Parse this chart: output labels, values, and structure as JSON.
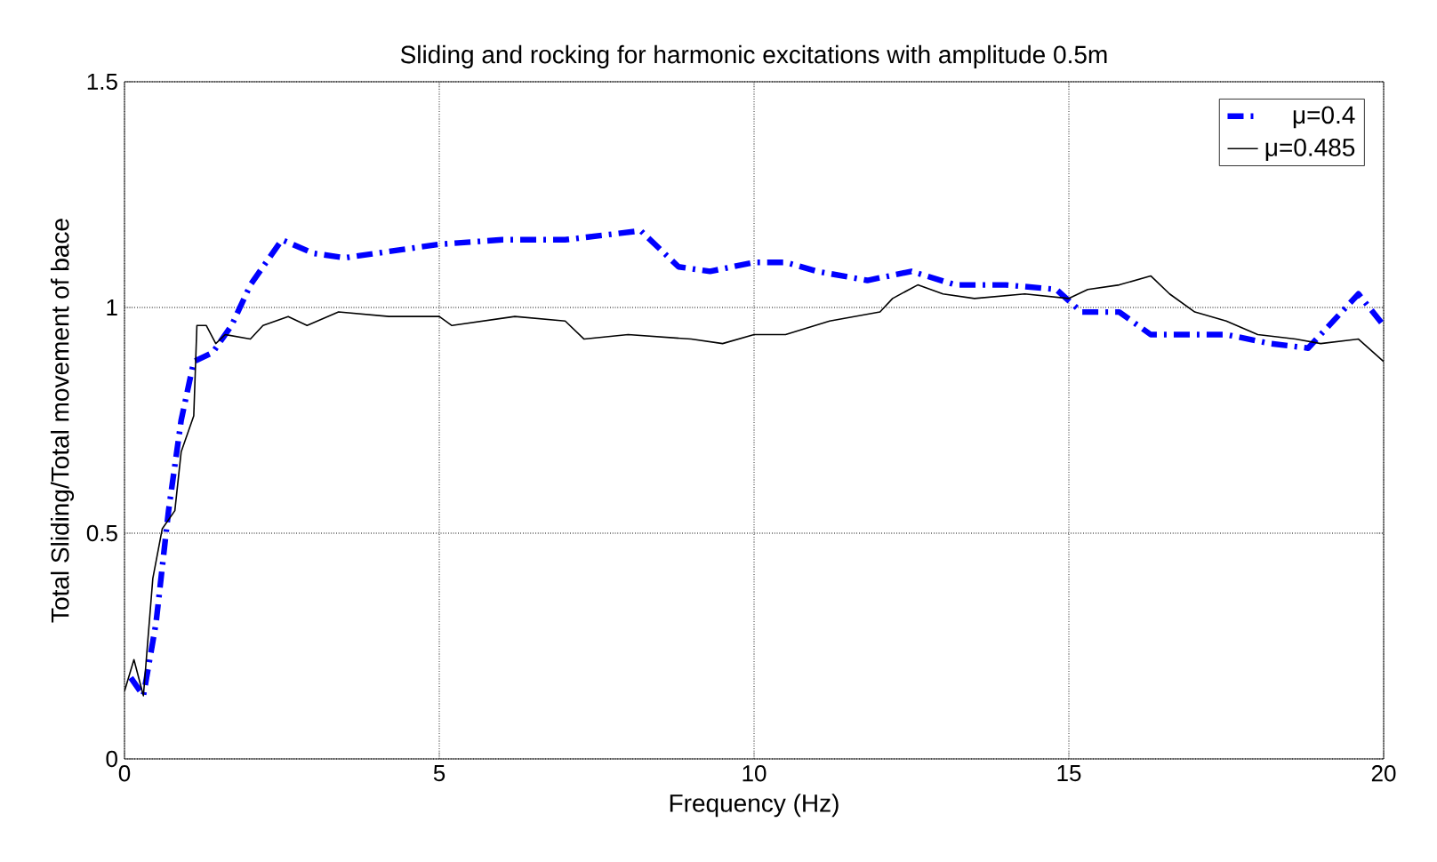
{
  "chart_data": {
    "type": "line",
    "title": "Sliding and rocking for harmonic excitations with amplitude 0.5m",
    "xlabel": "Frequency (Hz)",
    "ylabel": "Total Sliding/Total movement of bace",
    "xlim": [
      0,
      20
    ],
    "ylim": [
      0,
      1.5
    ],
    "xticks": [
      0,
      5,
      10,
      15,
      20
    ],
    "yticks": [
      0,
      0.5,
      1,
      1.5
    ],
    "grid": true,
    "legend": "top right",
    "series": [
      {
        "name": "μ=0.4",
        "color": "#0000ff",
        "line_style": "dashdot",
        "x": [
          0.1,
          0.3,
          0.5,
          0.7,
          0.9,
          1.1,
          1.4,
          1.7,
          2,
          2.5,
          3,
          3.5,
          4,
          5,
          6,
          7,
          8.2,
          8.8,
          9.3,
          10,
          10.5,
          11,
          11.8,
          12.5,
          13.2,
          14,
          14.8,
          15.2,
          15.8,
          16.3,
          17.5,
          18.2,
          18.8,
          19.4,
          19.6,
          20
        ],
        "values": [
          0.18,
          0.14,
          0.3,
          0.55,
          0.75,
          0.88,
          0.9,
          0.96,
          1.05,
          1.15,
          1.12,
          1.11,
          1.12,
          1.14,
          1.15,
          1.15,
          1.17,
          1.09,
          1.08,
          1.1,
          1.1,
          1.08,
          1.06,
          1.08,
          1.05,
          1.05,
          1.04,
          0.99,
          0.99,
          0.94,
          0.94,
          0.92,
          0.91,
          1.0,
          1.03,
          0.96
        ]
      },
      {
        "name": "μ=0.485",
        "color": "#000000",
        "line_style": "solid",
        "x": [
          0,
          0.15,
          0.3,
          0.45,
          0.6,
          0.8,
          0.9,
          1.1,
          1.15,
          1.3,
          1.45,
          1.6,
          2,
          2.2,
          2.6,
          2.9,
          3.4,
          4.2,
          5,
          5.2,
          6.2,
          7,
          7.3,
          8,
          9,
          9.5,
          10,
          10.5,
          11.2,
          12,
          12.2,
          12.6,
          13,
          13.5,
          14.3,
          15,
          15.3,
          15.8,
          16.3,
          16.6,
          17,
          17.5,
          18,
          18.6,
          19,
          19.6,
          20
        ],
        "values": [
          0.15,
          0.22,
          0.14,
          0.4,
          0.51,
          0.55,
          0.68,
          0.76,
          0.96,
          0.96,
          0.92,
          0.94,
          0.93,
          0.96,
          0.98,
          0.96,
          0.99,
          0.98,
          0.98,
          0.96,
          0.98,
          0.97,
          0.93,
          0.94,
          0.93,
          0.92,
          0.94,
          0.94,
          0.97,
          0.99,
          1.02,
          1.05,
          1.03,
          1.02,
          1.03,
          1.02,
          1.04,
          1.05,
          1.07,
          1.03,
          0.99,
          0.97,
          0.94,
          0.93,
          0.92,
          0.93,
          0.88
        ]
      }
    ]
  }
}
